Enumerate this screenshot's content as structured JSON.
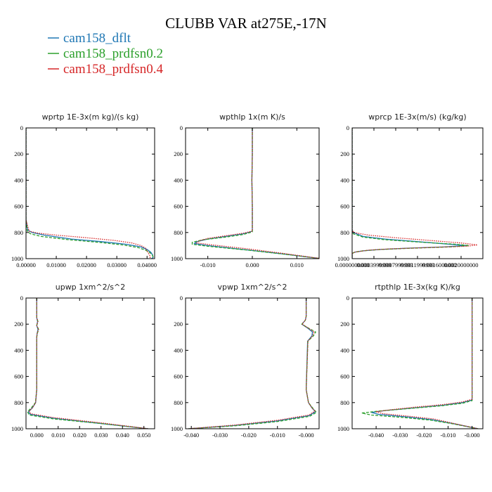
{
  "figure": {
    "title": "CLUBB VAR at275E,-17N",
    "legend": [
      {
        "label": "cam158_dflt",
        "color": "#1f77b4"
      },
      {
        "label": "cam158_prdfsn0.2",
        "color": "#2ca02c"
      },
      {
        "label": "cam158_prdfsn0.4",
        "color": "#d62728"
      }
    ]
  },
  "chart_data": [
    {
      "type": "line",
      "title": "wprtp  1E-3x(m kg)/(s kg)",
      "xlim": [
        0,
        0.0425
      ],
      "ylim": [
        1000,
        0
      ],
      "xticks": [
        0,
        0.01,
        0.02,
        0.03,
        0.04
      ],
      "xtick_labels": [
        "0.00000",
        "0.01000",
        "0.02000",
        "0.03000",
        "0.04000"
      ],
      "yticks": [
        0,
        200,
        400,
        600,
        800,
        1000
      ],
      "ytick_labels": [
        "0",
        "200",
        "400",
        "600",
        "800",
        "1000"
      ],
      "series": [
        {
          "name": "cam158_dflt",
          "style": "solid",
          "y": [
            0,
            700,
            780,
            800,
            820,
            850,
            870,
            890,
            910,
            930,
            950,
            970,
            990,
            1000
          ],
          "x": [
            0,
            0,
            0.0005,
            0.002,
            0.006,
            0.015,
            0.025,
            0.033,
            0.038,
            0.04,
            0.0412,
            0.0418,
            0.042,
            0.0415
          ]
        },
        {
          "name": "cam158_prdfsn0.2",
          "style": "dashed",
          "y": [
            0,
            700,
            790,
            810,
            830,
            855,
            875,
            895,
            915,
            935,
            955,
            975,
            990,
            1000
          ],
          "x": [
            0,
            0,
            0.0004,
            0.0015,
            0.005,
            0.014,
            0.024,
            0.032,
            0.037,
            0.0395,
            0.041,
            0.0418,
            0.042,
            0.0416
          ]
        },
        {
          "name": "cam158_prdfsn0.4",
          "style": "dotted",
          "y": [
            0,
            700,
            790,
            805,
            820,
            840,
            860,
            880,
            900,
            920,
            940,
            960,
            980,
            1000
          ],
          "x": [
            0,
            0,
            0.001,
            0.004,
            0.01,
            0.02,
            0.029,
            0.035,
            0.038,
            0.0395,
            0.04,
            0.0405,
            0.041,
            0.041
          ]
        }
      ]
    },
    {
      "type": "line",
      "title": "wpthlp  1x(m K)/s",
      "xlim": [
        -0.015,
        0.015
      ],
      "ylim": [
        1000,
        0
      ],
      "xticks": [
        -0.01,
        0,
        0.01
      ],
      "xtick_labels": [
        "-0.010",
        "0.000",
        "0.010"
      ],
      "yticks": [
        0,
        200,
        400,
        600,
        800,
        1000
      ],
      "ytick_labels": [
        "0",
        "200",
        "400",
        "600",
        "800",
        "1000"
      ],
      "series": [
        {
          "name": "cam158_dflt",
          "style": "solid",
          "y": [
            0,
            200,
            400,
            600,
            790,
            810,
            830,
            850,
            870,
            885,
            900,
            930,
            960,
            1000
          ],
          "x": [
            0,
            0,
            -0.0001,
            0,
            0,
            -0.002,
            -0.006,
            -0.01,
            -0.0125,
            -0.013,
            -0.01,
            -0.002,
            0.006,
            0.0155
          ]
        },
        {
          "name": "cam158_prdfsn0.2",
          "style": "dashed",
          "y": [
            0,
            200,
            400,
            600,
            795,
            815,
            835,
            855,
            875,
            890,
            905,
            935,
            965,
            1000
          ],
          "x": [
            0,
            0,
            -0.0001,
            0,
            0,
            -0.002,
            -0.006,
            -0.011,
            -0.0135,
            -0.0135,
            -0.01,
            -0.001,
            0.007,
            0.0155
          ]
        },
        {
          "name": "cam158_prdfsn0.4",
          "style": "dotted",
          "y": [
            0,
            200,
            400,
            600,
            790,
            805,
            825,
            845,
            865,
            880,
            895,
            925,
            960,
            1000
          ],
          "x": [
            0,
            0,
            -0.0001,
            0,
            0,
            -0.002,
            -0.006,
            -0.01,
            -0.012,
            -0.0125,
            -0.009,
            -0.001,
            0.007,
            0.0155
          ]
        }
      ]
    },
    {
      "type": "line",
      "title": "wprcp  1E-3x(m/s) (kg/kg)",
      "xlim": [
        0,
        0.0024
      ],
      "ylim": [
        1000,
        0
      ],
      "xticks": [
        0,
        0.0004,
        0.0008,
        0.0012,
        0.0016,
        0.002
      ],
      "xtick_labels": [
        "0.0000000000",
        "0.0003999999",
        "0.0007999999",
        "0.0011999999",
        "0.0016000000",
        "0.0020000000"
      ],
      "yticks": [
        0,
        200,
        400,
        600,
        800,
        1000
      ],
      "ytick_labels": [
        "0",
        "200",
        "400",
        "600",
        "800",
        "1000"
      ],
      "series": [
        {
          "name": "cam158_dflt",
          "style": "solid",
          "y": [
            0,
            780,
            800,
            830,
            850,
            870,
            890,
            900,
            910,
            920,
            930,
            940,
            950,
            960,
            1000
          ],
          "x": [
            0,
            0,
            2e-05,
            0.0002,
            0.0006,
            0.0012,
            0.0018,
            0.0021,
            0.0017,
            0.001,
            0.0005,
            0.0002,
            5e-05,
            0,
            0
          ]
        },
        {
          "name": "cam158_prdfsn0.2",
          "style": "dashed",
          "y": [
            0,
            790,
            810,
            835,
            855,
            875,
            890,
            900,
            910,
            920,
            930,
            940,
            950,
            960,
            1000
          ],
          "x": [
            0,
            0,
            2e-05,
            0.0002,
            0.0006,
            0.0013,
            0.0019,
            0.00215,
            0.0018,
            0.0011,
            0.0005,
            0.0002,
            5e-05,
            0,
            0
          ]
        },
        {
          "name": "cam158_prdfsn0.4",
          "style": "dotted",
          "y": [
            0,
            780,
            800,
            820,
            840,
            860,
            880,
            895,
            905,
            915,
            925,
            935,
            950,
            960,
            1000
          ],
          "x": [
            0,
            0,
            3e-05,
            0.0003,
            0.0008,
            0.0014,
            0.002,
            0.0023,
            0.0021,
            0.0014,
            0.0007,
            0.0003,
            5e-05,
            0,
            0
          ]
        }
      ]
    },
    {
      "type": "line",
      "title": "upwp  1xm^2/s^2",
      "xlim": [
        -0.005,
        0.055
      ],
      "ylim": [
        1000,
        0
      ],
      "xticks": [
        0,
        0.01,
        0.02,
        0.03,
        0.04,
        0.05
      ],
      "xtick_labels": [
        "0.000",
        "0.010",
        "0.020",
        "0.030",
        "0.040",
        "0.050"
      ],
      "yticks": [
        0,
        200,
        400,
        600,
        800,
        1000
      ],
      "ytick_labels": [
        "0",
        "200",
        "400",
        "600",
        "800",
        "1000"
      ],
      "series": [
        {
          "name": "cam158_dflt",
          "style": "solid",
          "y": [
            0,
            150,
            180,
            210,
            240,
            270,
            300,
            700,
            800,
            840,
            870,
            890,
            920,
            960,
            1000
          ],
          "x": [
            0,
            0,
            0.0004,
            0,
            0.0006,
            0.0002,
            0,
            0,
            -0.0005,
            -0.002,
            -0.0038,
            -0.003,
            0.008,
            0.03,
            0.052
          ]
        },
        {
          "name": "cam158_prdfsn0.2",
          "style": "dashed",
          "y": [
            0,
            150,
            180,
            210,
            240,
            270,
            300,
            700,
            800,
            840,
            870,
            895,
            925,
            960,
            1000
          ],
          "x": [
            0,
            0,
            0.0006,
            0,
            0.0009,
            0.0003,
            0,
            0,
            -0.0006,
            -0.0025,
            -0.0043,
            -0.0035,
            0.008,
            0.03,
            0.052
          ]
        },
        {
          "name": "cam158_prdfsn0.4",
          "style": "dotted",
          "y": [
            0,
            150,
            180,
            210,
            240,
            270,
            300,
            700,
            800,
            840,
            865,
            885,
            915,
            955,
            1000
          ],
          "x": [
            0,
            0,
            0.0005,
            0,
            0.0008,
            0.0002,
            0,
            0,
            -0.0005,
            -0.002,
            -0.0035,
            -0.0028,
            0.008,
            0.03,
            0.052
          ]
        }
      ]
    },
    {
      "type": "line",
      "title": "vpwp  1xm^2/s^2",
      "xlim": [
        -0.042,
        0.0045
      ],
      "ylim": [
        1000,
        0
      ],
      "xticks": [
        -0.04,
        -0.03,
        -0.02,
        -0.01,
        0
      ],
      "xtick_labels": [
        "-0.040",
        "-0.030",
        "-0.020",
        "-0.010",
        "-0.000"
      ],
      "yticks": [
        0,
        200,
        400,
        600,
        800,
        1000
      ],
      "ytick_labels": [
        "0",
        "200",
        "400",
        "600",
        "800",
        "1000"
      ],
      "series": [
        {
          "name": "cam158_dflt",
          "style": "solid",
          "y": [
            0,
            140,
            170,
            200,
            230,
            260,
            290,
            330,
            700,
            800,
            840,
            870,
            900,
            940,
            975,
            1000
          ],
          "x": [
            0,
            0,
            -0.0003,
            -0.0015,
            0.0005,
            0.0022,
            0.002,
            0.0005,
            0,
            0.0008,
            0.002,
            0.0032,
            0.001,
            -0.01,
            -0.025,
            -0.041
          ]
        },
        {
          "name": "cam158_prdfsn0.2",
          "style": "dashed",
          "y": [
            0,
            140,
            170,
            200,
            230,
            260,
            290,
            330,
            700,
            800,
            840,
            875,
            905,
            945,
            978,
            1000
          ],
          "x": [
            0,
            0,
            -0.0003,
            -0.0015,
            0.0008,
            0.0033,
            0.0025,
            0.0006,
            0,
            0.0008,
            0.0022,
            0.0036,
            0.0012,
            -0.01,
            -0.025,
            -0.041
          ]
        },
        {
          "name": "cam158_prdfsn0.4",
          "style": "dotted",
          "y": [
            0,
            140,
            170,
            200,
            230,
            260,
            290,
            330,
            700,
            800,
            840,
            865,
            895,
            935,
            972,
            1000
          ],
          "x": [
            0,
            0,
            -0.0003,
            -0.0014,
            0.0007,
            0.0028,
            0.0022,
            0.0006,
            0,
            0.0008,
            0.002,
            0.003,
            0.001,
            -0.01,
            -0.025,
            -0.041
          ]
        }
      ]
    },
    {
      "type": "line",
      "title": "rtpthlp  1E-3x(kg K)/kg",
      "xlim": [
        -0.05,
        0.0045
      ],
      "ylim": [
        1000,
        0
      ],
      "xticks": [
        -0.04,
        -0.03,
        -0.02,
        -0.01,
        0
      ],
      "xtick_labels": [
        "-0.040",
        "-0.030",
        "-0.020",
        "-0.010",
        "-0.000"
      ],
      "yticks": [
        0,
        200,
        400,
        600,
        800,
        1000
      ],
      "ytick_labels": [
        "0",
        "200",
        "400",
        "600",
        "800",
        "1000"
      ],
      "series": [
        {
          "name": "cam158_dflt",
          "style": "solid",
          "y": [
            0,
            700,
            780,
            800,
            820,
            840,
            860,
            875,
            890,
            910,
            930,
            960,
            1000
          ],
          "x": [
            0,
            0,
            0,
            -0.004,
            -0.012,
            -0.024,
            -0.036,
            -0.042,
            -0.039,
            -0.027,
            -0.017,
            -0.008,
            0.0025
          ]
        },
        {
          "name": "cam158_prdfsn0.2",
          "style": "dashed",
          "y": [
            0,
            700,
            785,
            805,
            825,
            845,
            865,
            880,
            895,
            915,
            935,
            962,
            1000
          ],
          "x": [
            0,
            0,
            0,
            -0.004,
            -0.013,
            -0.026,
            -0.039,
            -0.046,
            -0.042,
            -0.028,
            -0.017,
            -0.008,
            0.0025
          ]
        },
        {
          "name": "cam158_prdfsn0.4",
          "style": "dotted",
          "y": [
            0,
            700,
            775,
            795,
            815,
            835,
            855,
            870,
            885,
            905,
            925,
            958,
            1000
          ],
          "x": [
            0,
            0,
            0,
            -0.004,
            -0.012,
            -0.024,
            -0.034,
            -0.04,
            -0.037,
            -0.026,
            -0.016,
            -0.008,
            0.0025
          ]
        }
      ]
    }
  ]
}
